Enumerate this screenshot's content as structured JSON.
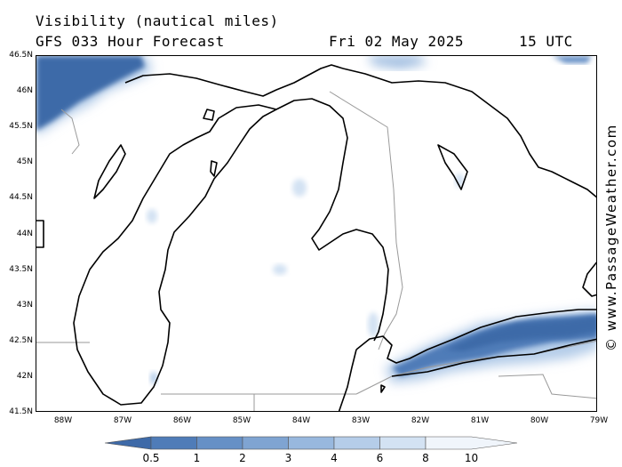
{
  "header": {
    "title": "Visibility (nautical miles)",
    "model_line": "GFS 033 Hour Forecast",
    "date": "Fri 02 May 2025",
    "time": "15 UTC"
  },
  "map": {
    "lat_ticks": [
      "46.5N",
      "46N",
      "45.5N",
      "45N",
      "44.5N",
      "44N",
      "43.5N",
      "43N",
      "42.5N",
      "42N",
      "41.5N"
    ],
    "lon_ticks": [
      "88W",
      "87W",
      "86W",
      "85W",
      "84W",
      "83W",
      "82W",
      "81W",
      "80W",
      "79W"
    ],
    "credit": "© www.PassageWeather.com"
  },
  "colorbar": {
    "labels": [
      "0.5",
      "1",
      "2",
      "3",
      "4",
      "6",
      "8",
      "10"
    ],
    "colors": [
      "#3e6aa8",
      "#4f7cb8",
      "#6690c6",
      "#7fa4d2",
      "#98b8de",
      "#b5cde9",
      "#d3e2f3",
      "#f0f5fb"
    ]
  }
}
